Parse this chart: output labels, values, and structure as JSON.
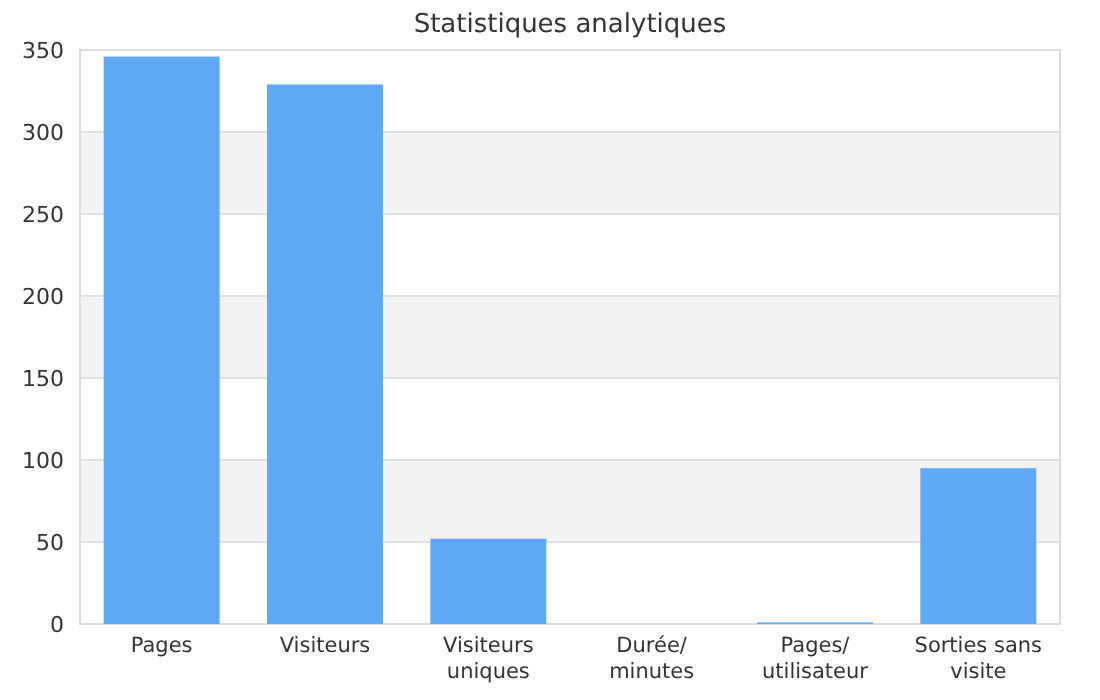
{
  "chart_data": {
    "type": "bar",
    "title": "Statistiques analytiques",
    "categories": [
      "Pages",
      "Visiteurs",
      "Visiteurs uniques",
      "Durée/minutes",
      "Pages/utilisateur",
      "Sorties sans visite"
    ],
    "values": [
      346,
      329,
      52,
      0,
      1,
      95
    ],
    "color": "#60a8f4",
    "ylim": [
      0,
      350
    ],
    "yticks": [
      0,
      50,
      100,
      150,
      200,
      250,
      300,
      350
    ],
    "grid": true
  }
}
